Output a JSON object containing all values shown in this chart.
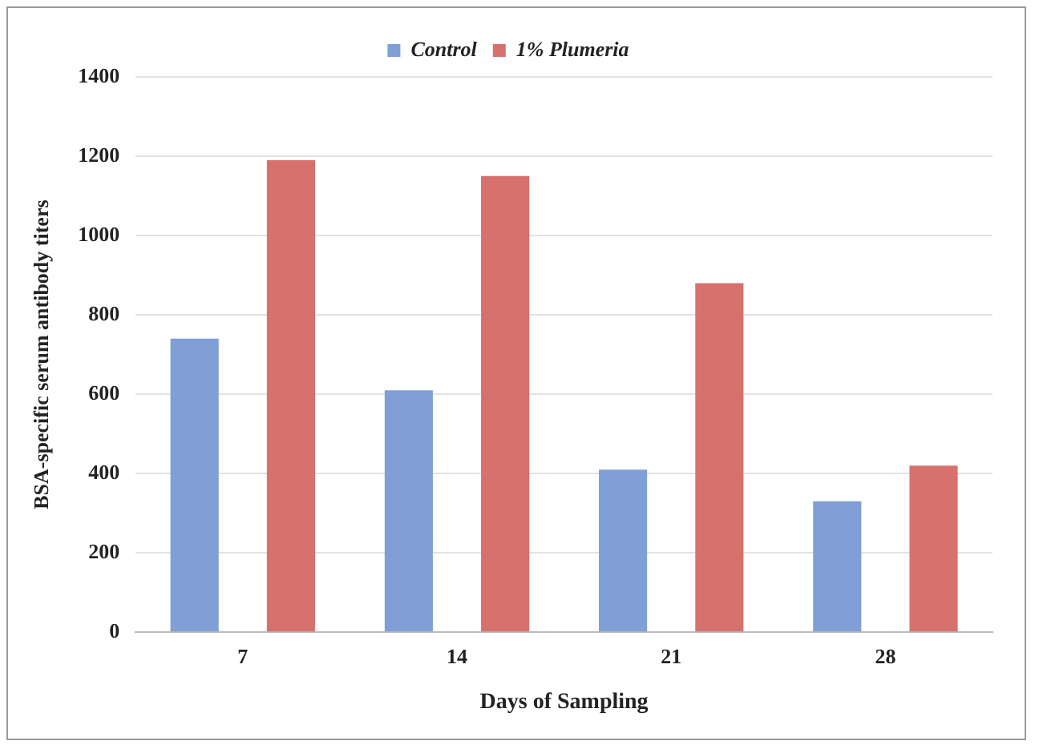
{
  "chart_data": {
    "type": "bar",
    "xlabel": "Days of Sampling",
    "ylabel": "BSA-specific serum antibody titers",
    "categories": [
      "7",
      "14",
      "21",
      "28"
    ],
    "series": [
      {
        "name": "Control",
        "color": "#7f9fd6",
        "values": [
          740,
          610,
          410,
          330
        ]
      },
      {
        "name": "1% Plumeria",
        "color": "#d6716d",
        "values": [
          1190,
          1150,
          880,
          420
        ]
      }
    ],
    "ylim": [
      0,
      1400
    ],
    "yticks": [
      0,
      200,
      400,
      600,
      800,
      1000,
      1200,
      1400
    ],
    "grid": "y",
    "legend": "top"
  }
}
